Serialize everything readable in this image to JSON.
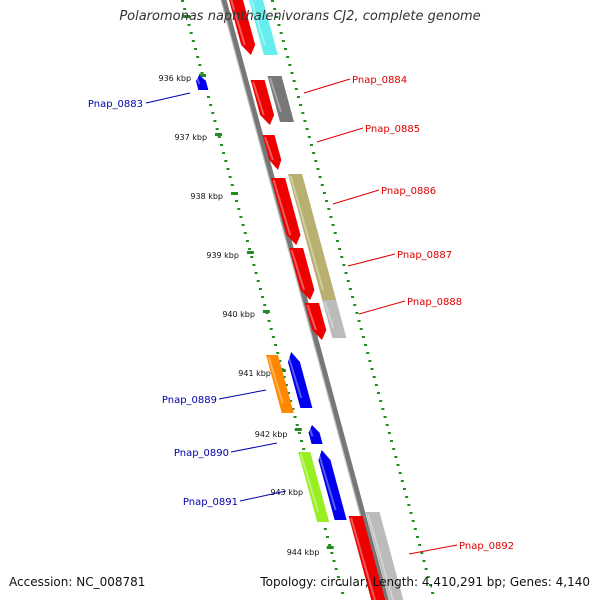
{
  "title": "Polaromonas naphthalenivorans CJ2, complete genome",
  "accession": "Accession: NC_008781",
  "summary": "Topology: circular; Length: 4,410,291 bp; Genes: 4,140",
  "colors": {
    "forward_label": "#dd0000",
    "reverse_label": "#0000aa",
    "backbone": "#888888",
    "ticks": "#228b22"
  },
  "kbp_ticks": [
    {
      "label": "936 kbp",
      "pos": 936
    },
    {
      "label": "937 kbp",
      "pos": 937
    },
    {
      "label": "938 kbp",
      "pos": 938
    },
    {
      "label": "939 kbp",
      "pos": 939
    },
    {
      "label": "940 kbp",
      "pos": 940
    },
    {
      "label": "941 kbp",
      "pos": 941
    },
    {
      "label": "942 kbp",
      "pos": 942
    },
    {
      "label": "943 kbp",
      "pos": 943
    },
    {
      "label": "944 kbp",
      "pos": 944
    }
  ],
  "gene_labels": [
    {
      "name": "Pnap_0883",
      "strand": "reverse"
    },
    {
      "name": "Pnap_0884",
      "strand": "forward"
    },
    {
      "name": "Pnap_0885",
      "strand": "forward"
    },
    {
      "name": "Pnap_0886",
      "strand": "forward"
    },
    {
      "name": "Pnap_0887",
      "strand": "forward"
    },
    {
      "name": "Pnap_0888",
      "strand": "forward"
    },
    {
      "name": "Pnap_0889",
      "strand": "reverse"
    },
    {
      "name": "Pnap_0890",
      "strand": "reverse"
    },
    {
      "name": "Pnap_0891",
      "strand": "reverse"
    },
    {
      "name": "Pnap_0892",
      "strand": "forward"
    }
  ]
}
